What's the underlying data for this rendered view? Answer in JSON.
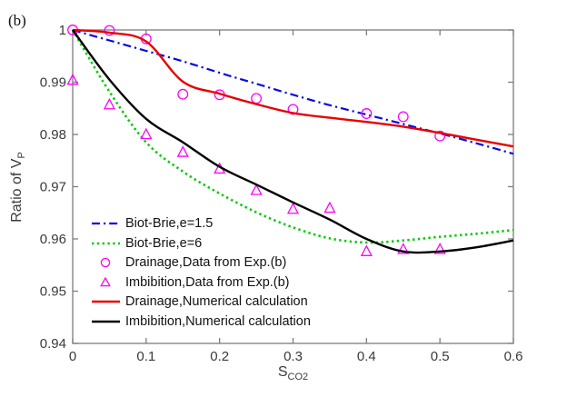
{
  "figure": {
    "annotation": "(b)",
    "background": "#ffffff",
    "axis_color": "#7d7d7d",
    "tick_text_color": "#3a3a3a"
  },
  "chart_data": {
    "type": "line",
    "title": "",
    "xlabel": "S",
    "xlabel_sub": "CO2",
    "ylabel": "Ratio of V",
    "ylabel_sub": "P",
    "xlim": [
      0,
      0.6
    ],
    "ylim": [
      0.94,
      1.0
    ],
    "grid": false,
    "legend_position": "lower-left",
    "x_ticks": [
      0,
      0.1,
      0.2,
      0.3,
      0.4,
      0.5,
      0.6
    ],
    "x_tick_labels": [
      "0",
      "0.1",
      "0.2",
      "0.3",
      "0.4",
      "0.5",
      "0.6"
    ],
    "y_ticks": [
      0.94,
      0.95,
      0.96,
      0.97,
      0.98,
      0.99,
      1.0
    ],
    "y_tick_labels": [
      "0.94",
      "0.95",
      "0.96",
      "0.97",
      "0.98",
      "0.99",
      "1"
    ],
    "series": [
      {
        "name": "Biot-Brie,e=1.5",
        "type": "line",
        "style": "dashdot",
        "color": "#0a0ae0",
        "width": 2.2,
        "x": [
          0,
          0.05,
          0.1,
          0.15,
          0.2,
          0.25,
          0.3,
          0.35,
          0.4,
          0.45,
          0.5,
          0.55,
          0.6
        ],
        "y": [
          1.0,
          0.998,
          0.996,
          0.994,
          0.9918,
          0.9897,
          0.9876,
          0.9856,
          0.9838,
          0.982,
          0.9802,
          0.9783,
          0.9763
        ]
      },
      {
        "name": "Biot-Brie,e=6",
        "type": "line",
        "style": "dotted",
        "color": "#00cc00",
        "width": 2.6,
        "x": [
          0,
          0.05,
          0.1,
          0.15,
          0.2,
          0.25,
          0.3,
          0.35,
          0.4,
          0.45,
          0.5,
          0.55,
          0.6
        ],
        "y": [
          1.0,
          0.9882,
          0.9785,
          0.9729,
          0.9687,
          0.9651,
          0.9622,
          0.9601,
          0.9593,
          0.9597,
          0.9604,
          0.961,
          0.9617
        ]
      },
      {
        "name": "Drainage,Data from Exp.(b)",
        "type": "scatter",
        "marker": "circle",
        "color": "#ff00ff",
        "x": [
          0,
          0.05,
          0.1,
          0.15,
          0.2,
          0.25,
          0.3,
          0.4,
          0.45,
          0.5
        ],
        "y": [
          1.0,
          0.9999,
          0.9983,
          0.9877,
          0.9876,
          0.9869,
          0.9848,
          0.984,
          0.9834,
          0.9797
        ]
      },
      {
        "name": "Imbibition,Data from Exp.(b)",
        "type": "scatter",
        "marker": "triangle",
        "color": "#ff00ff",
        "x": [
          0,
          0.05,
          0.1,
          0.15,
          0.2,
          0.25,
          0.3,
          0.35,
          0.4,
          0.45,
          0.5
        ],
        "y": [
          0.9904,
          0.9857,
          0.98,
          0.9766,
          0.9734,
          0.9693,
          0.9657,
          0.9659,
          0.9576,
          0.958,
          0.958
        ]
      },
      {
        "name": "Drainage,Numerical calculation",
        "type": "line",
        "style": "solid",
        "color": "#e80000",
        "width": 2.4,
        "x": [
          0,
          0.05,
          0.1,
          0.15,
          0.2,
          0.25,
          0.3,
          0.35,
          0.4,
          0.45,
          0.5,
          0.55,
          0.6
        ],
        "y": [
          1.0,
          0.9995,
          0.9978,
          0.9901,
          0.9878,
          0.9858,
          0.9841,
          0.9832,
          0.9824,
          0.9815,
          0.9803,
          0.979,
          0.9777
        ]
      },
      {
        "name": "Imbibition,Numerical calculation",
        "type": "line",
        "style": "solid",
        "color": "#000000",
        "width": 2.4,
        "x": [
          0,
          0.05,
          0.1,
          0.15,
          0.2,
          0.25,
          0.3,
          0.35,
          0.4,
          0.45,
          0.5,
          0.55,
          0.6
        ],
        "y": [
          1.0,
          0.9905,
          0.983,
          0.9785,
          0.9738,
          0.9704,
          0.967,
          0.9637,
          0.96,
          0.9576,
          0.9576,
          0.9584,
          0.9597
        ]
      }
    ],
    "legend_entries": [
      "Biot-Brie,e=1.5",
      "Biot-Brie,e=6",
      "Drainage,Data from Exp.(b)",
      "Imbibition,Data from Exp.(b)",
      "Drainage,Numerical calculation",
      "Imbibition,Numerical calculation"
    ]
  }
}
